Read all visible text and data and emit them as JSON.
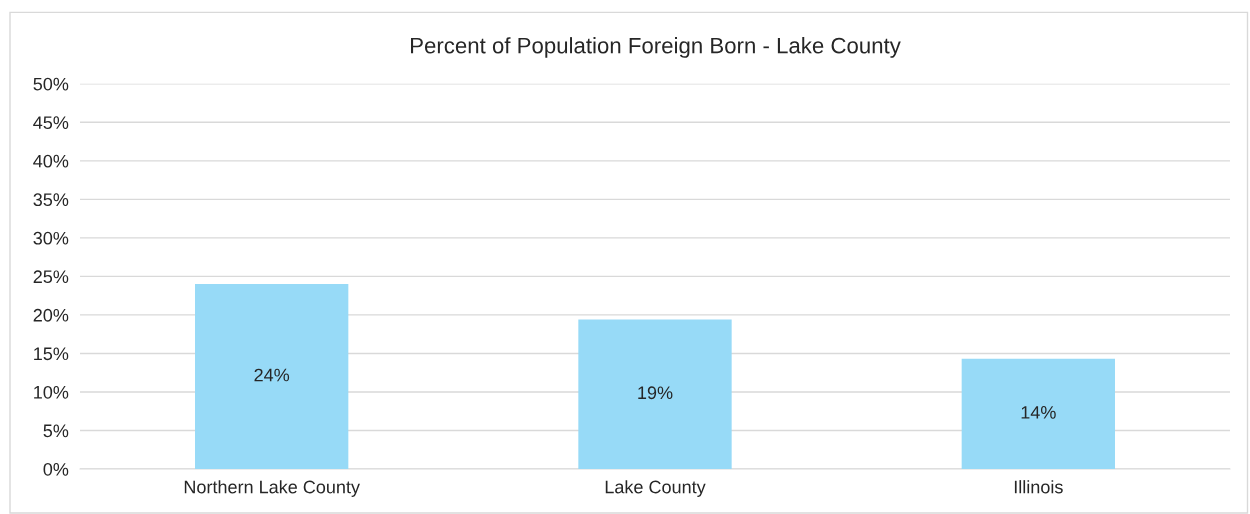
{
  "chart_data": {
    "type": "bar",
    "title": "Percent of Population Foreign Born - Lake County",
    "categories": [
      "Northern Lake County",
      "Lake County",
      "Illinois"
    ],
    "values": [
      24.0,
      19.4,
      14.3
    ],
    "color": "#97daf7",
    "value_labels": [
      "24%",
      "19%",
      "14%"
    ],
    "ylim": [
      0,
      50
    ],
    "yticks": [
      {
        "value": 0,
        "label": "0%"
      },
      {
        "value": 5,
        "label": "5%"
      },
      {
        "value": 10,
        "label": "10%"
      },
      {
        "value": 15,
        "label": "15%"
      },
      {
        "value": 20,
        "label": "20%"
      },
      {
        "value": 25,
        "label": "25%"
      },
      {
        "value": 30,
        "label": "30%"
      },
      {
        "value": 35,
        "label": "35%"
      },
      {
        "value": 40,
        "label": "40%"
      },
      {
        "value": 45,
        "label": "45%"
      },
      {
        "value": 50,
        "label": "50%"
      }
    ],
    "grid": "y",
    "legend": false
  }
}
